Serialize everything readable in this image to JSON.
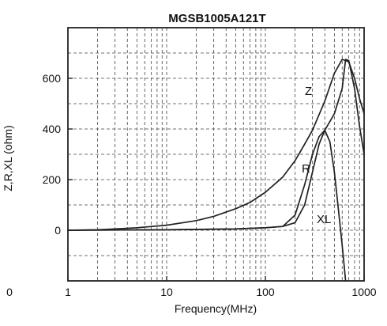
{
  "chart_data": {
    "type": "line",
    "title": "MGSB1005A121T",
    "xlabel": "Frequency(MHz)",
    "ylabel": "Z,R,XL (ohm)",
    "x_scale": "log",
    "xlim": [
      1,
      1000
    ],
    "ylim": [
      -200,
      800
    ],
    "x_ticks": [
      1,
      10,
      100,
      1000
    ],
    "x_tick_labels": [
      "1",
      "10",
      "100",
      "1000"
    ],
    "y_ticks": [
      0,
      200,
      400,
      600
    ],
    "y_tick_labels": [
      "0",
      "200",
      "400",
      "600"
    ],
    "grid": true,
    "stray_label": "0",
    "series": [
      {
        "name": "Z",
        "points": [
          [
            1,
            0
          ],
          [
            2,
            2
          ],
          [
            3,
            5
          ],
          [
            5,
            10
          ],
          [
            10,
            20
          ],
          [
            20,
            38
          ],
          [
            30,
            55
          ],
          [
            50,
            85
          ],
          [
            70,
            110
          ],
          [
            100,
            150
          ],
          [
            150,
            210
          ],
          [
            200,
            275
          ],
          [
            250,
            340
          ],
          [
            300,
            395
          ],
          [
            400,
            510
          ],
          [
            500,
            620
          ],
          [
            600,
            675
          ],
          [
            700,
            665
          ],
          [
            800,
            600
          ],
          [
            900,
            520
          ],
          [
            1000,
            460
          ]
        ]
      },
      {
        "name": "R",
        "points": [
          [
            1,
            0
          ],
          [
            10,
            2
          ],
          [
            50,
            5
          ],
          [
            100,
            10
          ],
          [
            150,
            15
          ],
          [
            200,
            60
          ],
          [
            250,
            180
          ],
          [
            300,
            300
          ],
          [
            350,
            370
          ],
          [
            400,
            395
          ],
          [
            500,
            460
          ],
          [
            600,
            560
          ],
          [
            650,
            675
          ],
          [
            700,
            670
          ],
          [
            800,
            560
          ],
          [
            900,
            410
          ],
          [
            1000,
            300
          ]
        ]
      },
      {
        "name": "XL",
        "points": [
          [
            1,
            0
          ],
          [
            10,
            2
          ],
          [
            50,
            5
          ],
          [
            100,
            10
          ],
          [
            150,
            15
          ],
          [
            200,
            30
          ],
          [
            250,
            100
          ],
          [
            300,
            230
          ],
          [
            350,
            340
          ],
          [
            400,
            395
          ],
          [
            450,
            350
          ],
          [
            500,
            230
          ],
          [
            550,
            80
          ],
          [
            600,
            -60
          ],
          [
            650,
            -200
          ]
        ]
      }
    ]
  }
}
